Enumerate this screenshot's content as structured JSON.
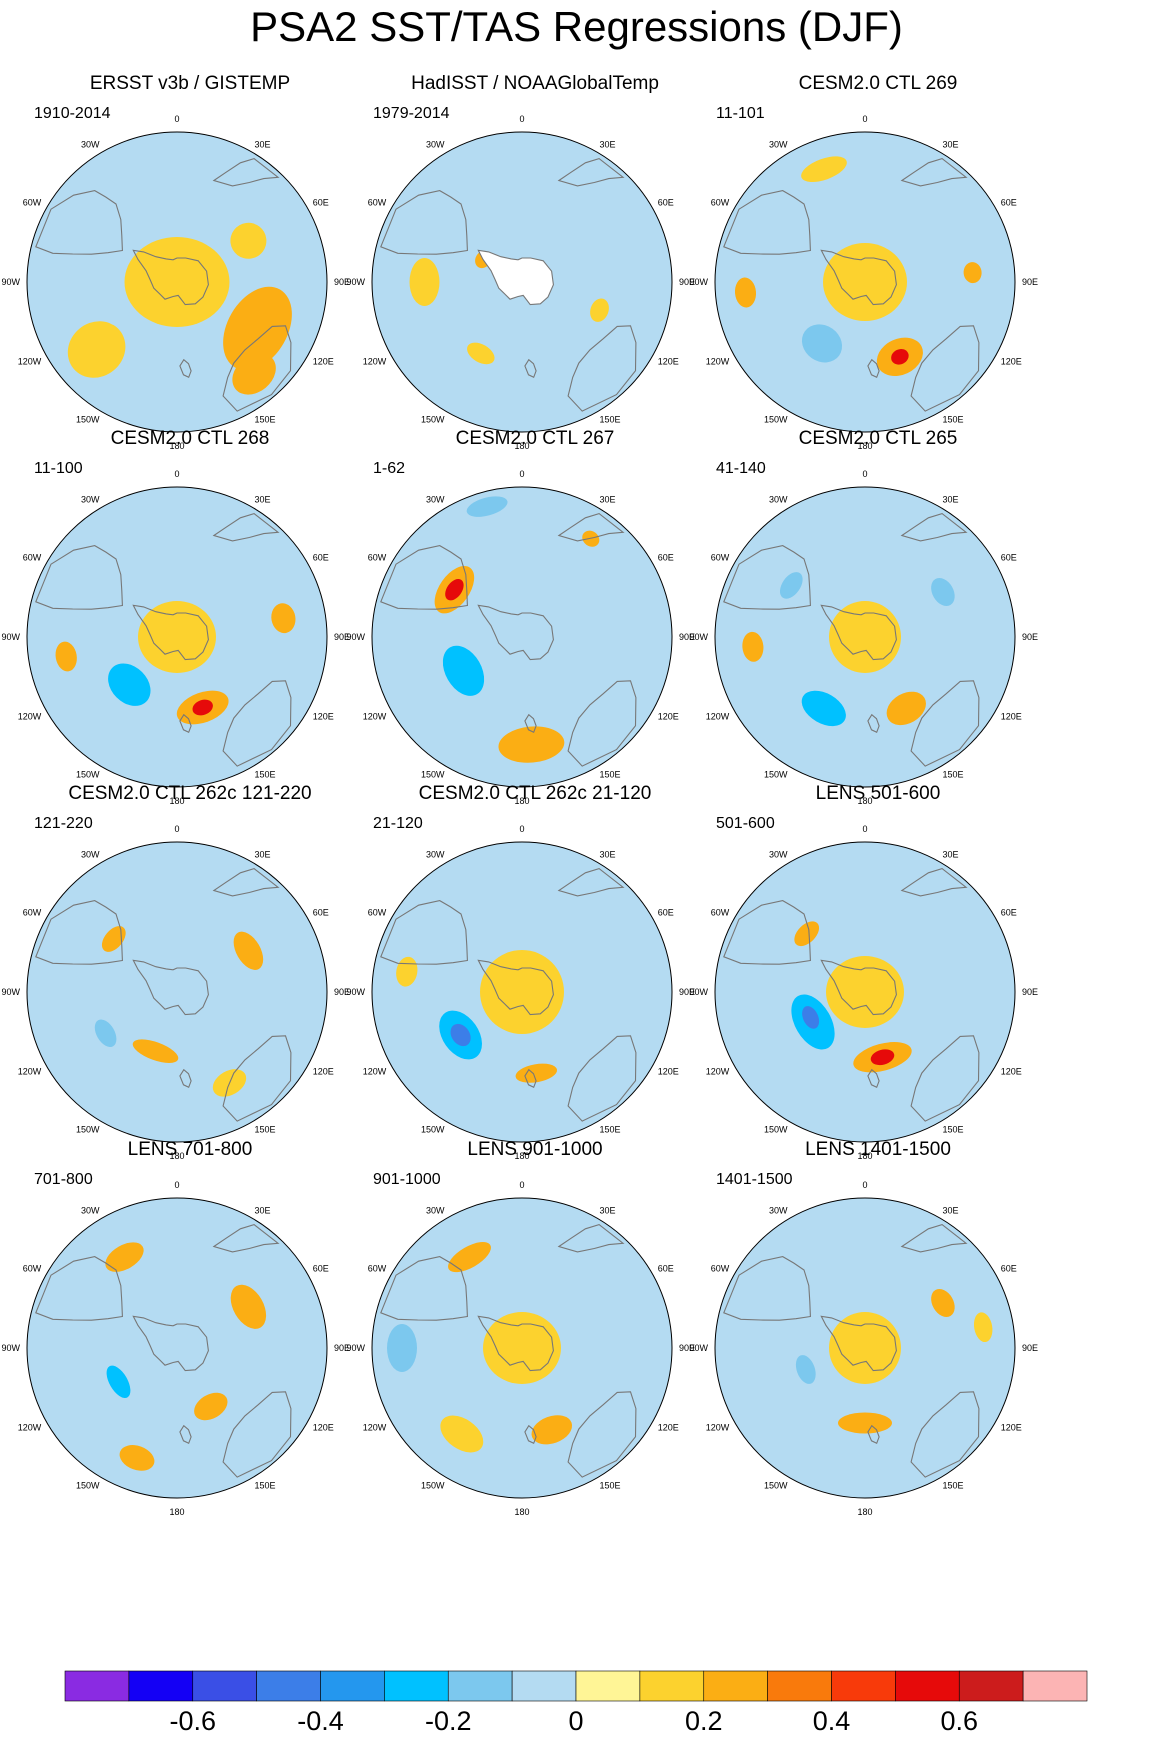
{
  "title": "PSA2 SST/TAS Regressions (DJF)",
  "longitude_labels": [
    "0",
    "30E",
    "60E",
    "90E",
    "120E",
    "150E",
    "180",
    "150W",
    "120W",
    "90W",
    "60W",
    "30W"
  ],
  "colors": {
    "missing": "#ffffff",
    "coast": "#777777"
  },
  "colorbar": {
    "colors": [
      "#8a2be2",
      "#1400f5",
      "#3a4fe6",
      "#3c7ee8",
      "#2497ee",
      "#00c1ff",
      "#7cc8ee",
      "#b4dbf2",
      "#fff596",
      "#fcd22e",
      "#fbae14",
      "#f97a0c",
      "#f83a0a",
      "#e60a0a",
      "#cc1c1c",
      "#fcb4b4"
    ],
    "labels": [
      "-0.6",
      "-0.4",
      "-0.2",
      "0",
      "0.2",
      "0.4",
      "0.6"
    ]
  },
  "panels": [
    {
      "title": "ERSST v3b / GISTEMP",
      "period": "1910-2014",
      "antarctica_missing": false,
      "blobs": [
        {
          "lon": 120,
          "r": 0.62,
          "a": 0.3,
          "b": 0.2,
          "level": 0.2
        },
        {
          "lon": 140,
          "r": 0.8,
          "a": 0.16,
          "b": 0.12,
          "level": 0.2
        },
        {
          "lon": 230,
          "r": 0.7,
          "a": 0.18,
          "b": 0.2,
          "level": 0.1
        },
        {
          "lon": 250,
          "r": 0.45,
          "a": 0.14,
          "b": 0.1,
          "level": -0.1
        },
        {
          "lon": 0,
          "r": 0.0,
          "a": 0.35,
          "b": 0.3,
          "level": 0.1
        },
        {
          "lon": 60,
          "r": 0.55,
          "a": 0.12,
          "b": 0.12,
          "level": 0.1
        }
      ]
    },
    {
      "title": "HadISST / NOAAGlobalTemp",
      "period": "1979-2014",
      "antarctica_missing": true,
      "blobs": [
        {
          "lon": 340,
          "r": 0.75,
          "a": 0.1,
          "b": 0.08,
          "level": -0.1
        },
        {
          "lon": 210,
          "r": 0.55,
          "a": 0.1,
          "b": 0.06,
          "level": 0.1
        },
        {
          "lon": 110,
          "r": 0.55,
          "a": 0.08,
          "b": 0.06,
          "level": 0.1
        },
        {
          "lon": 270,
          "r": 0.65,
          "a": 0.16,
          "b": 0.1,
          "level": 0.1
        },
        {
          "lon": 300,
          "r": 0.3,
          "a": 0.06,
          "b": 0.05,
          "level": 0.3
        }
      ]
    },
    {
      "title": "CESM2.0 CTL 269",
      "period": "11-101",
      "antarctica_missing": false,
      "blobs": [
        {
          "lon": 155,
          "r": 0.55,
          "a": 0.16,
          "b": 0.12,
          "level": 0.3
        },
        {
          "lon": 155,
          "r": 0.55,
          "a": 0.06,
          "b": 0.05,
          "level": 0.5
        },
        {
          "lon": 215,
          "r": 0.5,
          "a": 0.14,
          "b": 0.12,
          "level": -0.2
        },
        {
          "lon": 265,
          "r": 0.8,
          "a": 0.1,
          "b": 0.07,
          "level": 0.2
        },
        {
          "lon": 85,
          "r": 0.72,
          "a": 0.07,
          "b": 0.06,
          "level": 0.2
        },
        {
          "lon": 0,
          "r": 0.0,
          "a": 0.28,
          "b": 0.26,
          "level": 0.1
        },
        {
          "lon": 340,
          "r": 0.8,
          "a": 0.16,
          "b": 0.07,
          "level": 0.1
        }
      ]
    },
    {
      "title": "CESM2.0 CTL 268",
      "period": "11-100",
      "antarctica_missing": false,
      "blobs": [
        {
          "lon": 160,
          "r": 0.5,
          "a": 0.18,
          "b": 0.1,
          "level": 0.3
        },
        {
          "lon": 160,
          "r": 0.5,
          "a": 0.07,
          "b": 0.05,
          "level": 0.5
        },
        {
          "lon": 225,
          "r": 0.45,
          "a": 0.16,
          "b": 0.12,
          "level": -0.3
        },
        {
          "lon": 260,
          "r": 0.75,
          "a": 0.1,
          "b": 0.07,
          "level": 0.2
        },
        {
          "lon": 80,
          "r": 0.72,
          "a": 0.1,
          "b": 0.08,
          "level": 0.2
        },
        {
          "lon": 0,
          "r": 0.0,
          "a": 0.26,
          "b": 0.24,
          "level": 0.1
        }
      ]
    },
    {
      "title": "CESM2.0 CTL 267",
      "period": "1-62",
      "antarctica_missing": false,
      "blobs": [
        {
          "lon": 305,
          "r": 0.55,
          "a": 0.18,
          "b": 0.1,
          "level": 0.3
        },
        {
          "lon": 305,
          "r": 0.55,
          "a": 0.08,
          "b": 0.05,
          "level": 0.5
        },
        {
          "lon": 240,
          "r": 0.45,
          "a": 0.18,
          "b": 0.12,
          "level": -0.3
        },
        {
          "lon": 175,
          "r": 0.72,
          "a": 0.22,
          "b": 0.12,
          "level": 0.2
        },
        {
          "lon": 345,
          "r": 0.9,
          "a": 0.14,
          "b": 0.06,
          "level": -0.2
        },
        {
          "lon": 35,
          "r": 0.8,
          "a": 0.06,
          "b": 0.05,
          "level": 0.2
        }
      ]
    },
    {
      "title": "CESM2.0 CTL 265",
      "period": "41-140",
      "antarctica_missing": false,
      "blobs": [
        {
          "lon": 150,
          "r": 0.55,
          "a": 0.14,
          "b": 0.1,
          "level": 0.3
        },
        {
          "lon": 210,
          "r": 0.55,
          "a": 0.16,
          "b": 0.1,
          "level": -0.3
        },
        {
          "lon": 265,
          "r": 0.75,
          "a": 0.1,
          "b": 0.07,
          "level": 0.2
        },
        {
          "lon": 60,
          "r": 0.6,
          "a": 0.1,
          "b": 0.07,
          "level": -0.2
        },
        {
          "lon": 305,
          "r": 0.6,
          "a": 0.1,
          "b": 0.06,
          "level": -0.2
        },
        {
          "lon": 0,
          "r": 0.0,
          "a": 0.24,
          "b": 0.24,
          "level": 0.1
        }
      ]
    },
    {
      "title": "CESM2.0 CTL 262c 121-220",
      "period": "121-220",
      "antarctica_missing": false,
      "blobs": [
        {
          "lon": 60,
          "r": 0.55,
          "a": 0.14,
          "b": 0.08,
          "level": 0.3
        },
        {
          "lon": 200,
          "r": 0.42,
          "a": 0.16,
          "b": 0.06,
          "level": 0.2
        },
        {
          "lon": 310,
          "r": 0.55,
          "a": 0.1,
          "b": 0.06,
          "level": 0.2
        },
        {
          "lon": 240,
          "r": 0.55,
          "a": 0.1,
          "b": 0.06,
          "level": -0.2
        },
        {
          "lon": 100,
          "r": 0.78,
          "a": 0.14,
          "b": 0.06,
          "level": -0.1
        },
        {
          "lon": 150,
          "r": 0.7,
          "a": 0.12,
          "b": 0.08,
          "level": 0.1
        }
      ]
    },
    {
      "title": "CESM2.0 CTL 262c 21-120",
      "period": "21-120",
      "antarctica_missing": false,
      "blobs": [
        {
          "lon": 235,
          "r": 0.5,
          "a": 0.18,
          "b": 0.12,
          "level": -0.3
        },
        {
          "lon": 235,
          "r": 0.5,
          "a": 0.08,
          "b": 0.06,
          "level": -0.5
        },
        {
          "lon": 170,
          "r": 0.55,
          "a": 0.14,
          "b": 0.06,
          "level": 0.3
        },
        {
          "lon": 280,
          "r": 0.78,
          "a": 0.1,
          "b": 0.07,
          "level": 0.1
        },
        {
          "lon": 0,
          "r": 0.0,
          "a": 0.28,
          "b": 0.28,
          "level": 0.1
        },
        {
          "lon": 120,
          "r": 0.68,
          "a": 0.1,
          "b": 0.08,
          "level": -0.1
        }
      ]
    },
    {
      "title": "LENS 501-600",
      "period": "501-600",
      "antarctica_missing": false,
      "blobs": [
        {
          "lon": 240,
          "r": 0.4,
          "a": 0.2,
          "b": 0.12,
          "level": -0.3
        },
        {
          "lon": 245,
          "r": 0.4,
          "a": 0.08,
          "b": 0.05,
          "level": -0.5
        },
        {
          "lon": 165,
          "r": 0.45,
          "a": 0.2,
          "b": 0.09,
          "level": 0.3
        },
        {
          "lon": 165,
          "r": 0.45,
          "a": 0.08,
          "b": 0.05,
          "level": 0.5
        },
        {
          "lon": 315,
          "r": 0.55,
          "a": 0.1,
          "b": 0.06,
          "level": 0.2
        },
        {
          "lon": 0,
          "r": 0.0,
          "a": 0.26,
          "b": 0.24,
          "level": 0.1
        }
      ]
    },
    {
      "title": "LENS 701-800",
      "period": "701-800",
      "antarctica_missing": false,
      "blobs": [
        {
          "lon": 60,
          "r": 0.55,
          "a": 0.16,
          "b": 0.1,
          "level": 0.3
        },
        {
          "lon": 330,
          "r": 0.7,
          "a": 0.14,
          "b": 0.08,
          "level": 0.2
        },
        {
          "lon": 240,
          "r": 0.45,
          "a": 0.12,
          "b": 0.06,
          "level": -0.3
        },
        {
          "lon": 200,
          "r": 0.78,
          "a": 0.12,
          "b": 0.08,
          "level": 0.2
        },
        {
          "lon": 150,
          "r": 0.45,
          "a": 0.12,
          "b": 0.08,
          "level": 0.2
        },
        {
          "lon": 270,
          "r": 0.85,
          "a": 0.12,
          "b": 0.06,
          "level": -0.1
        }
      ]
    },
    {
      "title": "LENS 901-1000",
      "period": "901-1000",
      "antarctica_missing": false,
      "blobs": [
        {
          "lon": 160,
          "r": 0.58,
          "a": 0.14,
          "b": 0.09,
          "level": 0.3
        },
        {
          "lon": 270,
          "r": 0.8,
          "a": 0.16,
          "b": 0.1,
          "level": -0.2
        },
        {
          "lon": 330,
          "r": 0.7,
          "a": 0.16,
          "b": 0.07,
          "level": 0.2
        },
        {
          "lon": 215,
          "r": 0.7,
          "a": 0.16,
          "b": 0.1,
          "level": 0.1
        },
        {
          "lon": 0,
          "r": 0.0,
          "a": 0.26,
          "b": 0.24,
          "level": 0.1
        }
      ]
    },
    {
      "title": "LENS 1401-1500",
      "period": "1401-1500",
      "antarctica_missing": false,
      "blobs": [
        {
          "lon": 180,
          "r": 0.5,
          "a": 0.18,
          "b": 0.07,
          "level": 0.3
        },
        {
          "lon": 250,
          "r": 0.42,
          "a": 0.1,
          "b": 0.06,
          "level": -0.2
        },
        {
          "lon": 60,
          "r": 0.6,
          "a": 0.1,
          "b": 0.07,
          "level": 0.2
        },
        {
          "lon": 80,
          "r": 0.8,
          "a": 0.1,
          "b": 0.06,
          "level": 0.1
        },
        {
          "lon": 0,
          "r": 0.0,
          "a": 0.24,
          "b": 0.24,
          "level": 0.1
        }
      ]
    }
  ]
}
